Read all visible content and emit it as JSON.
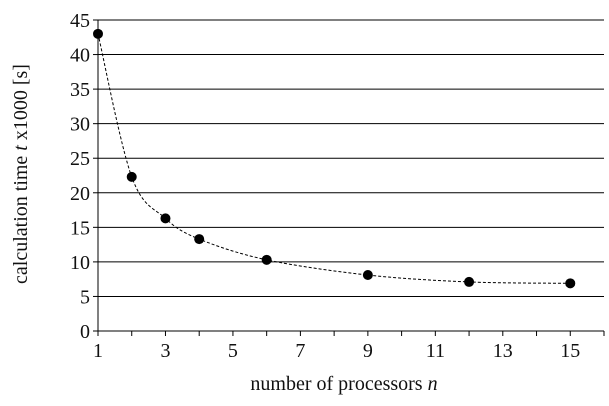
{
  "chart_data": {
    "type": "line",
    "title": "",
    "xlabel": {
      "prefix": "number of processors ",
      "var": "n",
      "suffix": ""
    },
    "ylabel": {
      "prefix": "calculation time ",
      "var": "t",
      "suffix": " x1000 [s]"
    },
    "xlim": [
      1,
      16
    ],
    "ylim": [
      0,
      45
    ],
    "x_ticks": [
      1,
      3,
      5,
      7,
      9,
      11,
      13,
      15
    ],
    "y_ticks": [
      0,
      5,
      10,
      15,
      20,
      25,
      30,
      35,
      40,
      45
    ],
    "grid": "horizontal",
    "line_style": "dashed",
    "marker": "filled-circle",
    "colors": {
      "series": "#000000",
      "grid": "#000000",
      "axis": "#000000"
    },
    "series": [
      {
        "x": [
          1,
          2,
          3,
          4,
          6,
          9,
          12,
          15
        ],
        "values": [
          43.0,
          22.3,
          16.3,
          13.3,
          10.3,
          8.1,
          7.1,
          6.9
        ]
      }
    ]
  }
}
